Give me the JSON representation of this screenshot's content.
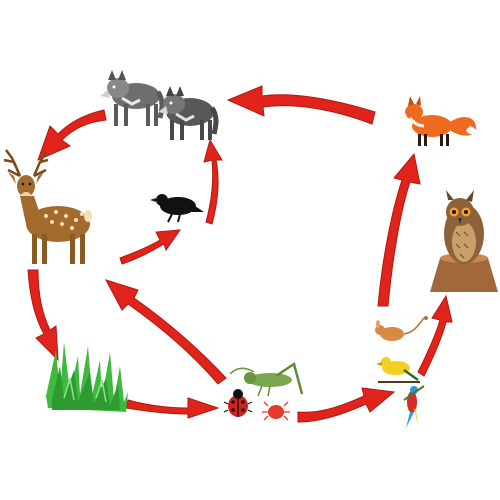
{
  "diagram": {
    "kind": "food web",
    "organisms": [
      {
        "id": "wolves",
        "icon": "wolf-pair-icon"
      },
      {
        "id": "fox",
        "icon": "fox-icon"
      },
      {
        "id": "deer",
        "icon": "deer-icon"
      },
      {
        "id": "crow",
        "icon": "crow-icon"
      },
      {
        "id": "owl",
        "icon": "owl-icon"
      },
      {
        "id": "grass",
        "icon": "grass-icon"
      },
      {
        "id": "insects",
        "icon": "insects-icon"
      },
      {
        "id": "small-animals",
        "icon": "small-animals-icon"
      }
    ],
    "arrows": [
      {
        "from": "fox",
        "to": "wolves"
      },
      {
        "from": "wolves",
        "to": "deer"
      },
      {
        "from": "deer",
        "to": "grass"
      },
      {
        "from": "grass",
        "to": "insects"
      },
      {
        "from": "insects",
        "to": "deer"
      },
      {
        "from": "insects",
        "to": "small-animals"
      },
      {
        "from": "small-animals",
        "to": "fox"
      },
      {
        "from": "small-animals",
        "to": "owl"
      },
      {
        "from": "deer",
        "to": "crow"
      },
      {
        "from": "crow",
        "to": "wolves"
      }
    ],
    "colors": {
      "arrow": "#e0241b",
      "arrow_stroke": "#b01810",
      "wolf": "#6e6e70",
      "fox": "#ee6a1e",
      "deer": "#a26a2d",
      "grass": "#3fb83f",
      "owl": "#8b6239",
      "background": "#ffffff"
    }
  }
}
